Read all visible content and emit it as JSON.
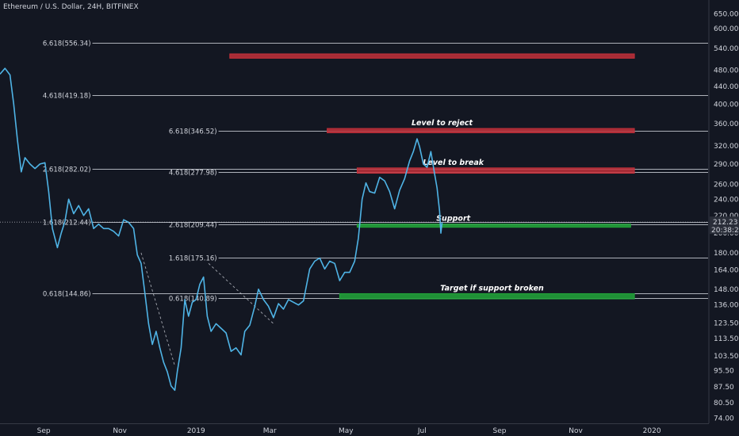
{
  "chart_title": "Ethereum / U.S. Dollar, 24H, BITFINEX",
  "colors": {
    "background": "#131722",
    "axis_text": "#d1d4dc",
    "price_line": "#4fb4e6",
    "resistance_zone": "#c2303a",
    "support_zone": "#22a63a",
    "fib_line": "#c9ccd4"
  },
  "last_price_tag": {
    "price": "212.23",
    "countdown": "20:38:21"
  },
  "chart_data": {
    "type": "line",
    "title": "Ethereum / U.S. Dollar, 24H, BITFINEX",
    "y_scale": "log",
    "ylim": [
      72,
      700
    ],
    "y_ticks": [
      650,
      600,
      540,
      480,
      440,
      400,
      360,
      320,
      290,
      260,
      240,
      220,
      200,
      180,
      164,
      148,
      136,
      123.5,
      113.5,
      103.5,
      95.5,
      87.5,
      80.5,
      74
    ],
    "y_tick_labels": [
      "650.00",
      "600.00",
      "540.00",
      "480.00",
      "440.00",
      "400.00",
      "360.00",
      "320.00",
      "290.00",
      "260.00",
      "240.00",
      "220.00",
      "200.00",
      "180.00",
      "164.00",
      "148.00",
      "136.00",
      "123.50",
      "113.50",
      "103.50",
      "95.50",
      "87.50",
      "80.50",
      "74.00"
    ],
    "x_range": [
      "2018-07-28",
      "2020-02-15"
    ],
    "x_ticks": [
      {
        "date": "2018-09-01",
        "label": "Sep"
      },
      {
        "date": "2018-11-01",
        "label": "Nov"
      },
      {
        "date": "2019-01-01",
        "label": "2019"
      },
      {
        "date": "2019-03-01",
        "label": "Mar"
      },
      {
        "date": "2019-05-01",
        "label": "May"
      },
      {
        "date": "2019-07-01",
        "label": "Jul"
      },
      {
        "date": "2019-09-01",
        "label": "Sep"
      },
      {
        "date": "2019-11-01",
        "label": "Nov"
      },
      {
        "date": "2020-01-01",
        "label": "2020"
      }
    ],
    "series": [
      {
        "values": [
          {
            "x": "2018-07-28",
            "y": 470
          },
          {
            "x": "2018-08-01",
            "y": 485
          },
          {
            "x": "2018-08-05",
            "y": 468
          },
          {
            "x": "2018-08-08",
            "y": 400
          },
          {
            "x": "2018-08-11",
            "y": 330
          },
          {
            "x": "2018-08-14",
            "y": 278
          },
          {
            "x": "2018-08-17",
            "y": 300
          },
          {
            "x": "2018-08-21",
            "y": 290
          },
          {
            "x": "2018-08-25",
            "y": 283
          },
          {
            "x": "2018-08-29",
            "y": 290
          },
          {
            "x": "2018-09-02",
            "y": 292
          },
          {
            "x": "2018-09-05",
            "y": 250
          },
          {
            "x": "2018-09-08",
            "y": 205
          },
          {
            "x": "2018-09-12",
            "y": 185
          },
          {
            "x": "2018-09-15",
            "y": 200
          },
          {
            "x": "2018-09-18",
            "y": 213
          },
          {
            "x": "2018-09-21",
            "y": 240
          },
          {
            "x": "2018-09-25",
            "y": 222
          },
          {
            "x": "2018-09-29",
            "y": 232
          },
          {
            "x": "2018-10-03",
            "y": 220
          },
          {
            "x": "2018-10-07",
            "y": 228
          },
          {
            "x": "2018-10-11",
            "y": 205
          },
          {
            "x": "2018-10-15",
            "y": 210
          },
          {
            "x": "2018-10-19",
            "y": 205
          },
          {
            "x": "2018-10-23",
            "y": 205
          },
          {
            "x": "2018-10-27",
            "y": 202
          },
          {
            "x": "2018-10-31",
            "y": 197
          },
          {
            "x": "2018-11-04",
            "y": 215
          },
          {
            "x": "2018-11-08",
            "y": 212
          },
          {
            "x": "2018-11-12",
            "y": 205
          },
          {
            "x": "2018-11-15",
            "y": 178
          },
          {
            "x": "2018-11-18",
            "y": 170
          },
          {
            "x": "2018-11-21",
            "y": 145
          },
          {
            "x": "2018-11-24",
            "y": 123
          },
          {
            "x": "2018-11-27",
            "y": 110
          },
          {
            "x": "2018-11-30",
            "y": 118
          },
          {
            "x": "2018-12-03",
            "y": 108
          },
          {
            "x": "2018-12-06",
            "y": 100
          },
          {
            "x": "2018-12-09",
            "y": 95
          },
          {
            "x": "2018-12-12",
            "y": 88
          },
          {
            "x": "2018-12-15",
            "y": 86
          },
          {
            "x": "2018-12-17",
            "y": 95
          },
          {
            "x": "2018-12-20",
            "y": 108
          },
          {
            "x": "2018-12-23",
            "y": 140
          },
          {
            "x": "2018-12-26",
            "y": 128
          },
          {
            "x": "2018-12-29",
            "y": 138
          },
          {
            "x": "2019-01-01",
            "y": 140
          },
          {
            "x": "2019-01-04",
            "y": 152
          },
          {
            "x": "2019-01-07",
            "y": 158
          },
          {
            "x": "2019-01-10",
            "y": 128
          },
          {
            "x": "2019-01-13",
            "y": 118
          },
          {
            "x": "2019-01-17",
            "y": 123
          },
          {
            "x": "2019-01-21",
            "y": 120
          },
          {
            "x": "2019-01-25",
            "y": 117
          },
          {
            "x": "2019-01-29",
            "y": 106
          },
          {
            "x": "2019-02-02",
            "y": 108
          },
          {
            "x": "2019-02-06",
            "y": 104
          },
          {
            "x": "2019-02-09",
            "y": 118
          },
          {
            "x": "2019-02-13",
            "y": 122
          },
          {
            "x": "2019-02-17",
            "y": 135
          },
          {
            "x": "2019-02-20",
            "y": 148
          },
          {
            "x": "2019-02-24",
            "y": 140
          },
          {
            "x": "2019-02-28",
            "y": 135
          },
          {
            "x": "2019-03-04",
            "y": 127
          },
          {
            "x": "2019-03-08",
            "y": 137
          },
          {
            "x": "2019-03-12",
            "y": 133
          },
          {
            "x": "2019-03-16",
            "y": 140
          },
          {
            "x": "2019-03-20",
            "y": 138
          },
          {
            "x": "2019-03-24",
            "y": 136
          },
          {
            "x": "2019-03-28",
            "y": 139
          },
          {
            "x": "2019-04-02",
            "y": 165
          },
          {
            "x": "2019-04-06",
            "y": 172
          },
          {
            "x": "2019-04-10",
            "y": 175
          },
          {
            "x": "2019-04-14",
            "y": 165
          },
          {
            "x": "2019-04-18",
            "y": 172
          },
          {
            "x": "2019-04-22",
            "y": 170
          },
          {
            "x": "2019-04-26",
            "y": 155
          },
          {
            "x": "2019-04-30",
            "y": 162
          },
          {
            "x": "2019-05-04",
            "y": 162
          },
          {
            "x": "2019-05-08",
            "y": 172
          },
          {
            "x": "2019-05-11",
            "y": 195
          },
          {
            "x": "2019-05-14",
            "y": 240
          },
          {
            "x": "2019-05-17",
            "y": 262
          },
          {
            "x": "2019-05-20",
            "y": 250
          },
          {
            "x": "2019-05-24",
            "y": 248
          },
          {
            "x": "2019-05-28",
            "y": 270
          },
          {
            "x": "2019-06-01",
            "y": 265
          },
          {
            "x": "2019-06-05",
            "y": 250
          },
          {
            "x": "2019-06-09",
            "y": 228
          },
          {
            "x": "2019-06-13",
            "y": 252
          },
          {
            "x": "2019-06-17",
            "y": 268
          },
          {
            "x": "2019-06-21",
            "y": 295
          },
          {
            "x": "2019-06-24",
            "y": 310
          },
          {
            "x": "2019-06-27",
            "y": 332
          },
          {
            "x": "2019-06-29",
            "y": 318
          },
          {
            "x": "2019-07-02",
            "y": 290
          },
          {
            "x": "2019-07-05",
            "y": 285
          },
          {
            "x": "2019-07-08",
            "y": 310
          },
          {
            "x": "2019-07-11",
            "y": 275
          },
          {
            "x": "2019-07-13",
            "y": 255
          },
          {
            "x": "2019-07-15",
            "y": 225
          },
          {
            "x": "2019-07-16",
            "y": 200
          },
          {
            "x": "2019-07-17",
            "y": 212
          }
        ]
      }
    ],
    "fib_levels": [
      {
        "label": "6.618(556.34)",
        "price": 556.34,
        "x_start": "2018-10-10",
        "x_end": "2020-02-15"
      },
      {
        "label": "4.618(419.18)",
        "price": 419.18,
        "x_start": "2018-10-10",
        "x_end": "2020-02-15"
      },
      {
        "label": "6.618(346.52)",
        "price": 346.52,
        "x_start": "2019-01-19",
        "x_end": "2020-02-15"
      },
      {
        "label": "2.618(282.02)",
        "price": 282.02,
        "x_start": "2018-10-10",
        "x_end": "2020-02-15"
      },
      {
        "label": "4.618(277.98)",
        "price": 277.98,
        "x_start": "2019-01-19",
        "x_end": "2020-02-15"
      },
      {
        "label": "1.618(212.44)",
        "price": 212.44,
        "x_start": "2018-10-10",
        "x_end": "2020-02-15"
      },
      {
        "label": "2.618(209.44)",
        "price": 209.44,
        "x_start": "2019-01-19",
        "x_end": "2020-02-15"
      },
      {
        "label": "1.618(175.16)",
        "price": 175.16,
        "x_start": "2019-01-19",
        "x_end": "2020-02-15"
      },
      {
        "label": "0.618(144.86)",
        "price": 144.86,
        "x_start": "2018-10-10",
        "x_end": "2020-02-15"
      },
      {
        "label": "0.618(140.89)",
        "price": 140.89,
        "x_start": "2019-01-19",
        "x_end": "2020-02-15"
      }
    ],
    "zones": [
      {
        "label": "",
        "color": "resistance",
        "top": 524,
        "bottom": 512,
        "x_start": "2019-01-28",
        "x_end": "2019-12-18"
      },
      {
        "label": "Level to reject",
        "color": "resistance",
        "top": 351,
        "bottom": 343,
        "x_start": "2019-04-16",
        "x_end": "2019-12-18"
      },
      {
        "label": "Level to break",
        "color": "resistance",
        "top": 284,
        "bottom": 276,
        "x_start": "2019-05-10",
        "x_end": "2019-12-18"
      },
      {
        "label": "Support",
        "color": "support",
        "top": 210,
        "bottom": 207.5,
        "x_start": "2019-05-10",
        "x_end": "2019-12-15"
      },
      {
        "label": "Target if support broken",
        "color": "support",
        "top": 144.5,
        "bottom": 140.5,
        "x_start": "2019-04-26",
        "x_end": "2019-12-18"
      }
    ],
    "trend_lines": [
      {
        "from": {
          "x": "2018-11-18",
          "y": 180
        },
        "to": {
          "x": "2018-12-15",
          "y": 98
        }
      },
      {
        "from": {
          "x": "2019-01-11",
          "y": 170
        },
        "to": {
          "x": "2019-03-04",
          "y": 123
        }
      }
    ]
  }
}
